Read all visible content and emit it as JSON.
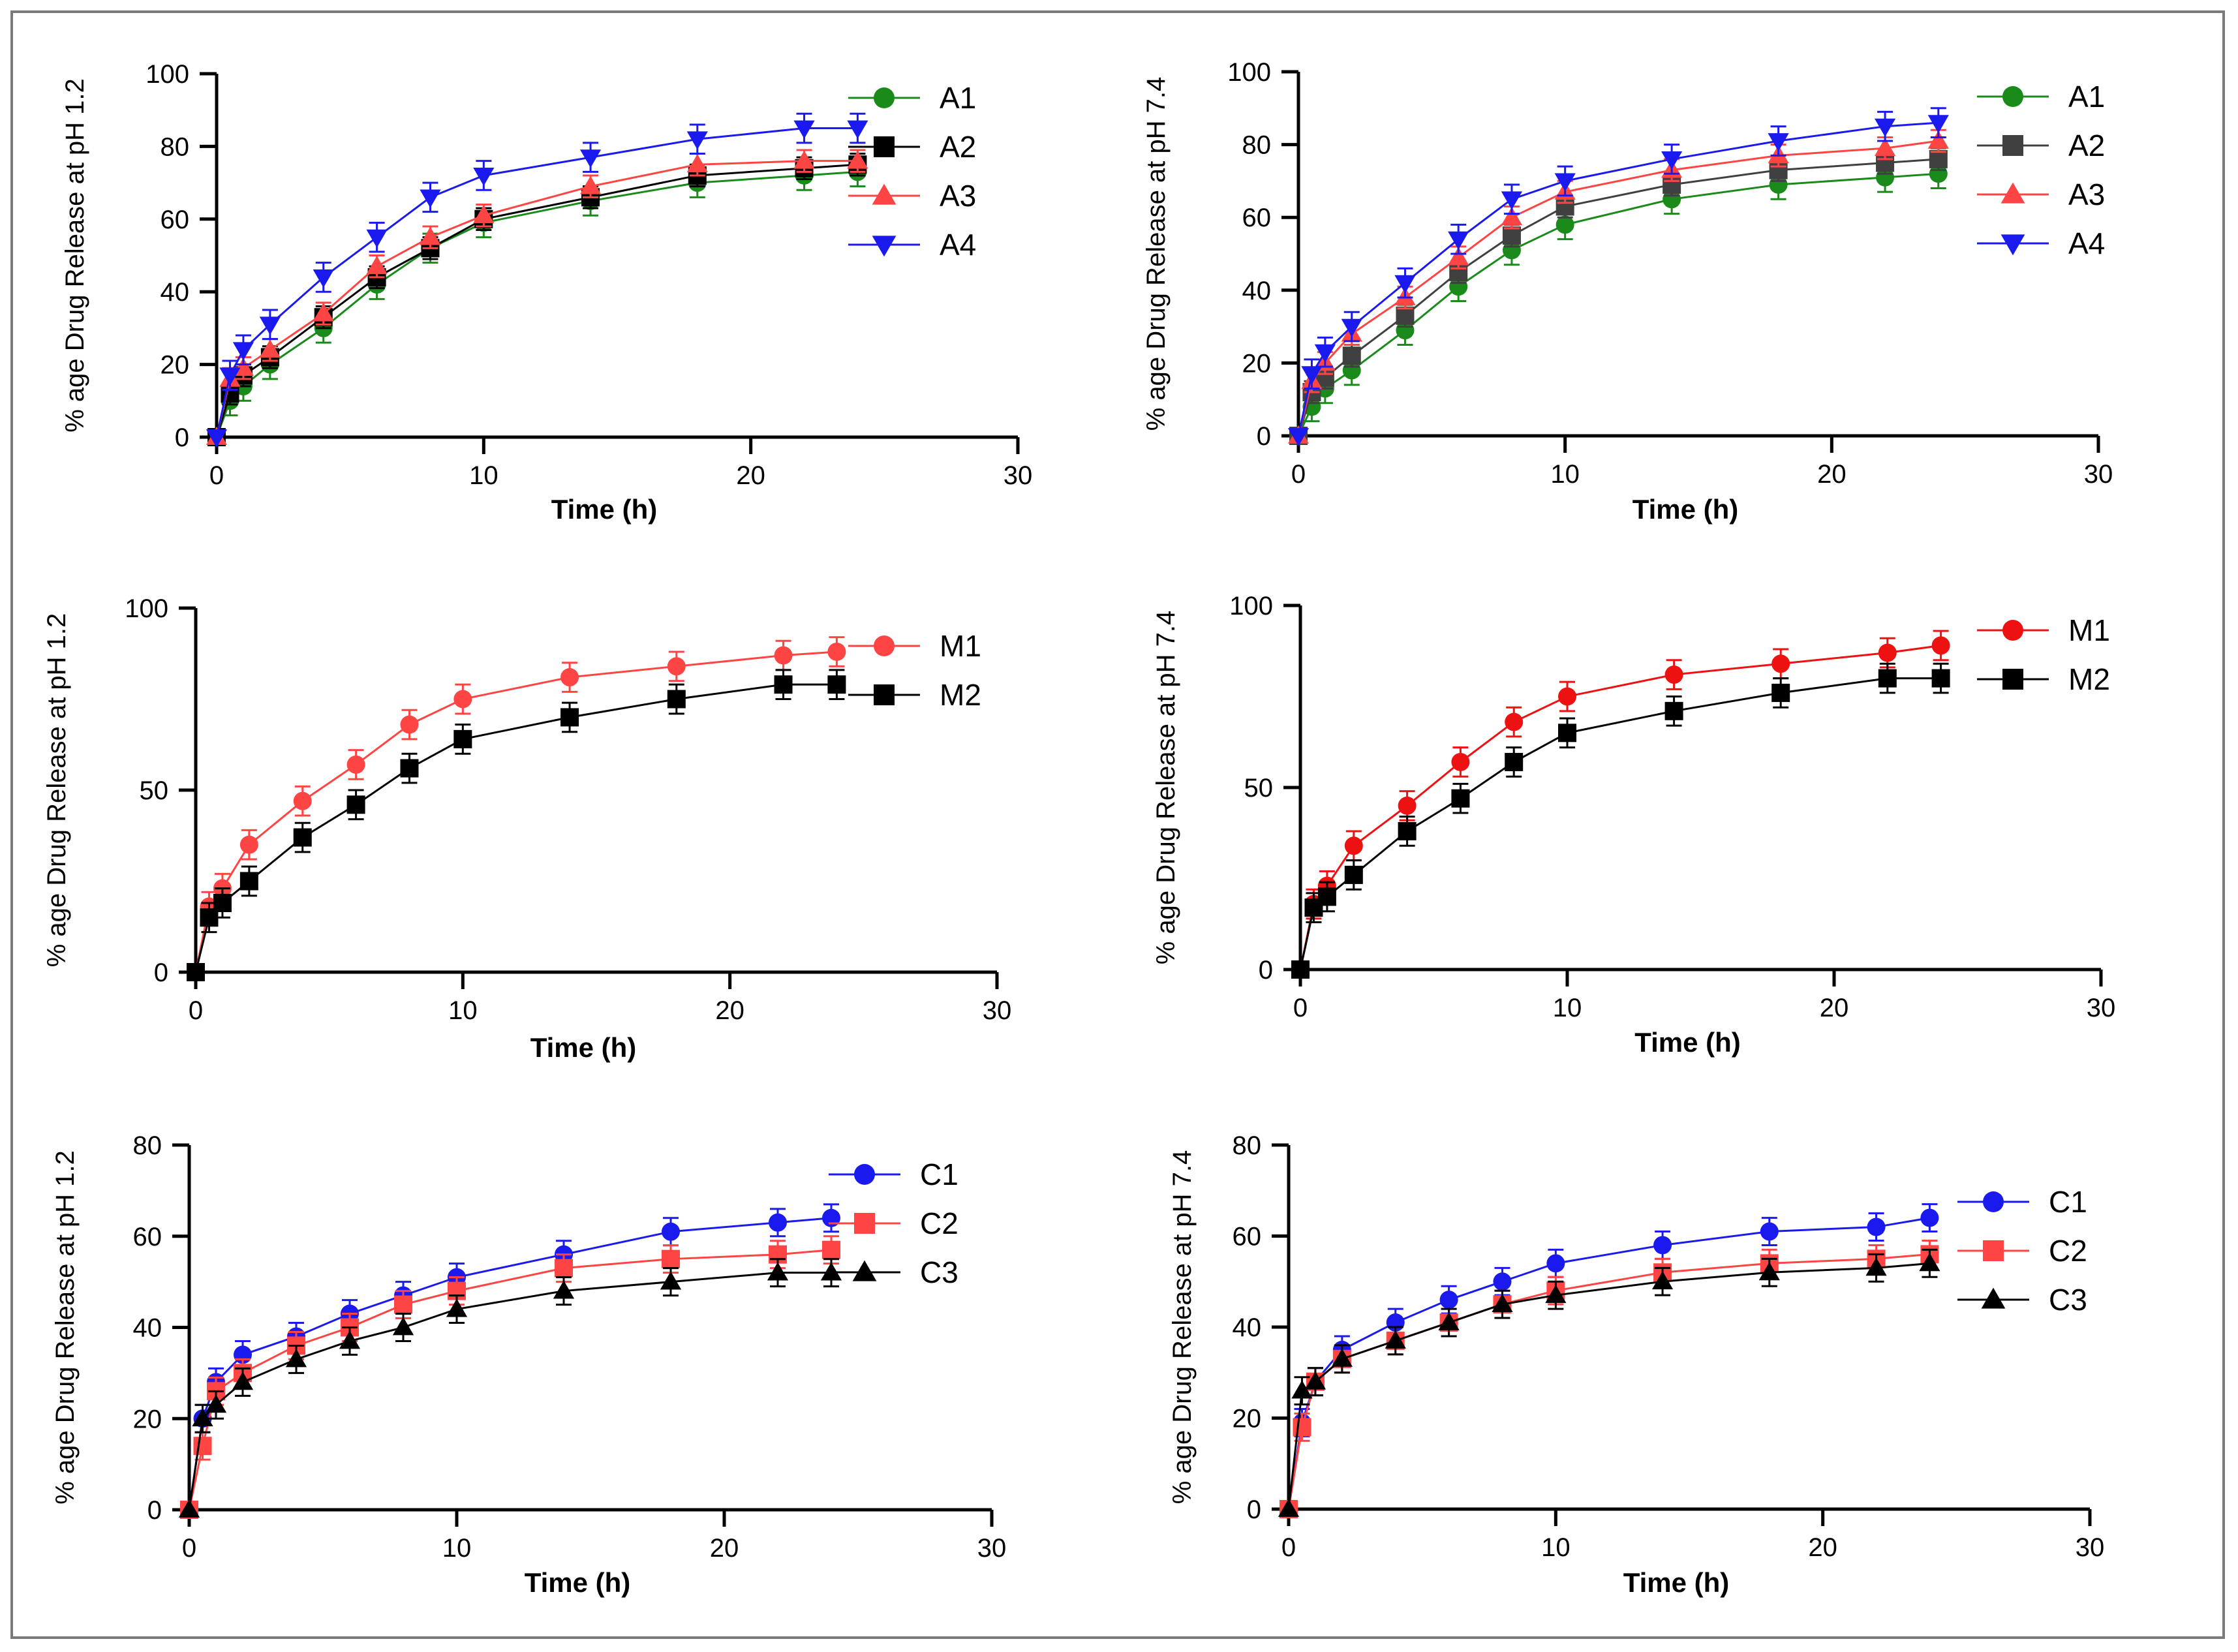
{
  "chart_data": [
    {
      "type": "line",
      "ylabel": "% age Drug Release at pH 1.2",
      "xlabel": "Time (h)",
      "xlim": [
        0,
        30
      ],
      "xticks": [
        0,
        10,
        20,
        30
      ],
      "ylim": [
        0,
        100
      ],
      "yticks": [
        0,
        20,
        40,
        60,
        80,
        100
      ],
      "x": [
        0,
        0.5,
        1,
        2,
        4,
        6,
        8,
        10,
        14,
        18,
        22,
        24
      ],
      "series": [
        {
          "name": "A1",
          "color": "#1a8a1a",
          "marker": "circle",
          "values": [
            0,
            10,
            14,
            20,
            30,
            42,
            52,
            59,
            65,
            70,
            72,
            73
          ],
          "err": 4
        },
        {
          "name": "A2",
          "color": "#000000",
          "marker": "square",
          "values": [
            0,
            12,
            17,
            22,
            33,
            44,
            52,
            60,
            66,
            72,
            74,
            75
          ],
          "err": 3
        },
        {
          "name": "A3",
          "color": "#ff4444",
          "marker": "triangle-up",
          "values": [
            0,
            16,
            19,
            24,
            34,
            47,
            55,
            61,
            69,
            75,
            76,
            76
          ],
          "err": 3
        },
        {
          "name": "A4",
          "color": "#1a1aee",
          "marker": "triangle-down",
          "values": [
            0,
            17,
            24,
            31,
            44,
            55,
            66,
            72,
            77,
            82,
            85,
            85
          ],
          "err": 4
        }
      ]
    },
    {
      "type": "line",
      "ylabel": "% age Drug Release at pH 7.4",
      "xlabel": "Time (h)",
      "xlim": [
        0,
        30
      ],
      "xticks": [
        0,
        10,
        20,
        30
      ],
      "ylim": [
        0,
        100
      ],
      "yticks": [
        0,
        20,
        40,
        60,
        80,
        100
      ],
      "x": [
        0,
        0.5,
        1,
        2,
        4,
        6,
        8,
        10,
        14,
        18,
        22,
        24
      ],
      "series": [
        {
          "name": "A1",
          "color": "#1a8a1a",
          "marker": "circle",
          "values": [
            0,
            8,
            13,
            18,
            29,
            41,
            51,
            58,
            65,
            69,
            71,
            72
          ],
          "err": 4
        },
        {
          "name": "A2",
          "color": "#404040",
          "marker": "square",
          "values": [
            0,
            12,
            16,
            22,
            33,
            45,
            55,
            63,
            69,
            73,
            75,
            76
          ],
          "err": 3
        },
        {
          "name": "A3",
          "color": "#ff4444",
          "marker": "triangle-up",
          "values": [
            0,
            15,
            20,
            28,
            38,
            49,
            60,
            67,
            73,
            77,
            79,
            81
          ],
          "err": 3
        },
        {
          "name": "A4",
          "color": "#1a1aee",
          "marker": "triangle-down",
          "values": [
            0,
            17,
            23,
            30,
            42,
            54,
            65,
            70,
            76,
            81,
            85,
            86
          ],
          "err": 4
        }
      ]
    },
    {
      "type": "line",
      "ylabel": "% age Drug Release at pH 1.2",
      "xlabel": "Time (h)",
      "xlim": [
        0,
        30
      ],
      "xticks": [
        0,
        10,
        20,
        30
      ],
      "ylim": [
        0,
        100
      ],
      "yticks": [
        0,
        50,
        100
      ],
      "x": [
        0,
        0.5,
        1,
        2,
        4,
        6,
        8,
        10,
        14,
        18,
        22,
        24
      ],
      "series": [
        {
          "name": "M1",
          "color": "#ff4444",
          "marker": "circle",
          "values": [
            0,
            18,
            23,
            35,
            47,
            57,
            68,
            75,
            81,
            84,
            87,
            88
          ],
          "err": 4
        },
        {
          "name": "M2",
          "color": "#000000",
          "marker": "square",
          "values": [
            0,
            15,
            19,
            25,
            37,
            46,
            56,
            64,
            70,
            75,
            79,
            79
          ],
          "err": 4
        }
      ]
    },
    {
      "type": "line",
      "ylabel": "% age Drug Release at pH 7.4",
      "xlabel": "Time (h)",
      "xlim": [
        0,
        30
      ],
      "xticks": [
        0,
        10,
        20,
        30
      ],
      "ylim": [
        0,
        100
      ],
      "yticks": [
        0,
        50,
        100
      ],
      "x": [
        0,
        0.5,
        1,
        2,
        4,
        6,
        8,
        10,
        14,
        18,
        22,
        24
      ],
      "series": [
        {
          "name": "M1",
          "color": "#ee1111",
          "marker": "circle",
          "values": [
            0,
            18,
            23,
            34,
            45,
            57,
            68,
            75,
            81,
            84,
            87,
            89
          ],
          "err": 4
        },
        {
          "name": "M2",
          "color": "#000000",
          "marker": "square",
          "values": [
            0,
            17,
            20,
            26,
            38,
            47,
            57,
            65,
            71,
            76,
            80,
            80
          ],
          "err": 4
        }
      ]
    },
    {
      "type": "line",
      "ylabel": "% age Drug Release at pH 1.2",
      "xlabel": "Time (h)",
      "xlim": [
        0,
        30
      ],
      "xticks": [
        0,
        10,
        20,
        30
      ],
      "ylim": [
        0,
        80
      ],
      "yticks": [
        0,
        20,
        40,
        60,
        80
      ],
      "x": [
        0,
        0.5,
        1,
        2,
        4,
        6,
        8,
        10,
        14,
        18,
        22,
        24
      ],
      "series": [
        {
          "name": "C1",
          "color": "#1a1aee",
          "marker": "circle",
          "values": [
            0,
            20,
            28,
            34,
            38,
            43,
            47,
            51,
            56,
            61,
            63,
            64
          ],
          "err": 3
        },
        {
          "name": "C2",
          "color": "#ff4444",
          "marker": "square",
          "values": [
            0,
            14,
            26,
            30,
            36,
            40,
            45,
            48,
            53,
            55,
            56,
            57
          ],
          "err": 3
        },
        {
          "name": "C3",
          "color": "#000000",
          "marker": "triangle-up",
          "values": [
            0,
            20,
            23,
            28,
            33,
            37,
            40,
            44,
            48,
            50,
            52,
            52
          ],
          "err": 3
        }
      ]
    },
    {
      "type": "line",
      "ylabel": "% age Drug Release at pH 7.4",
      "xlabel": "Time (h)",
      "xlim": [
        0,
        30
      ],
      "xticks": [
        0,
        10,
        20,
        30
      ],
      "ylim": [
        0,
        80
      ],
      "yticks": [
        0,
        20,
        40,
        60,
        80
      ],
      "x": [
        0,
        0.5,
        1,
        2,
        4,
        6,
        8,
        10,
        14,
        18,
        22,
        24
      ],
      "series": [
        {
          "name": "C1",
          "color": "#1a1aee",
          "marker": "circle",
          "values": [
            0,
            19,
            28,
            35,
            41,
            46,
            50,
            54,
            58,
            61,
            62,
            64
          ],
          "err": 3
        },
        {
          "name": "C2",
          "color": "#ff4444",
          "marker": "square",
          "values": [
            0,
            18,
            28,
            33,
            37,
            41,
            45,
            48,
            52,
            54,
            55,
            56
          ],
          "err": 3
        },
        {
          "name": "C3",
          "color": "#000000",
          "marker": "triangle-up",
          "values": [
            0,
            26,
            28,
            33,
            37,
            41,
            45,
            47,
            50,
            52,
            53,
            54
          ],
          "err": 3
        }
      ]
    }
  ]
}
